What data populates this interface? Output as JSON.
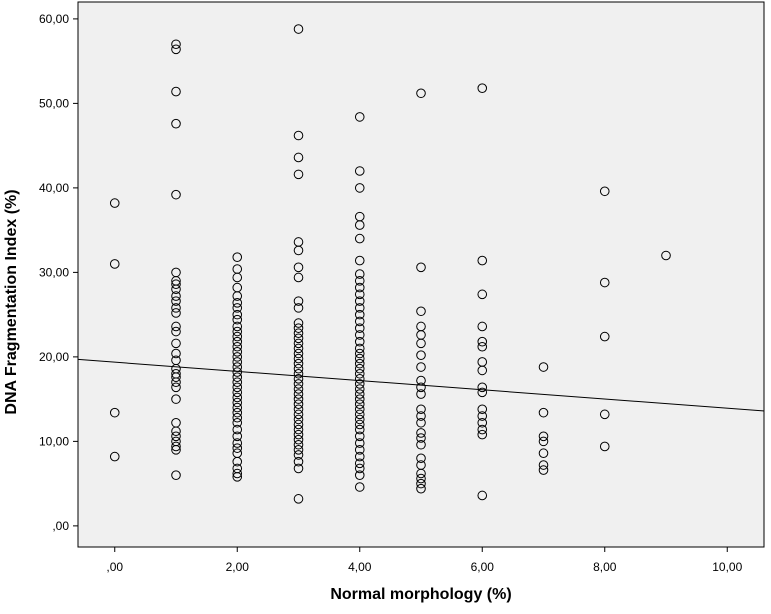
{
  "chart_data": {
    "type": "scatter",
    "title": "",
    "xlabel": "Normal morphology (%)",
    "ylabel": "DNA Fragmentation Index (%)",
    "xlim": [
      -0.6,
      10.6
    ],
    "ylim": [
      -2.5,
      62
    ],
    "x_ticks": [
      0,
      2,
      4,
      6,
      8,
      10
    ],
    "x_tick_labels": [
      ",00",
      "2,00",
      "4,00",
      "6,00",
      "8,00",
      "10,00"
    ],
    "y_ticks": [
      0,
      10,
      20,
      30,
      40,
      50,
      60
    ],
    "y_tick_labels": [
      ",00",
      "10,00",
      "20,00",
      "30,00",
      "40,00",
      "50,00",
      "60,00"
    ],
    "grid": false,
    "background": "#f0f0f0",
    "marker": "open-circle",
    "fit_line": {
      "type": "linear",
      "x": [
        -0.6,
        10.6
      ],
      "y": [
        19.7,
        13.6
      ]
    },
    "points": [
      [
        0,
        38.2
      ],
      [
        0,
        31.0
      ],
      [
        0,
        13.4
      ],
      [
        0,
        8.2
      ],
      [
        1,
        57.0
      ],
      [
        1,
        56.4
      ],
      [
        1,
        51.4
      ],
      [
        1,
        47.6
      ],
      [
        1,
        39.2
      ],
      [
        1,
        30.0
      ],
      [
        1,
        29.0
      ],
      [
        1,
        28.6
      ],
      [
        1,
        28.0
      ],
      [
        1,
        27.2
      ],
      [
        1,
        26.6
      ],
      [
        1,
        25.8
      ],
      [
        1,
        25.2
      ],
      [
        1,
        23.6
      ],
      [
        1,
        23.0
      ],
      [
        1,
        21.6
      ],
      [
        1,
        20.4
      ],
      [
        1,
        19.6
      ],
      [
        1,
        18.6
      ],
      [
        1,
        18.0
      ],
      [
        1,
        17.6
      ],
      [
        1,
        17.0
      ],
      [
        1,
        16.4
      ],
      [
        1,
        15.0
      ],
      [
        1,
        12.2
      ],
      [
        1,
        11.2
      ],
      [
        1,
        10.6
      ],
      [
        1,
        10.0
      ],
      [
        1,
        9.4
      ],
      [
        1,
        9.0
      ],
      [
        1,
        6.0
      ],
      [
        2,
        31.8
      ],
      [
        2,
        30.4
      ],
      [
        2,
        29.4
      ],
      [
        2,
        28.2
      ],
      [
        2,
        27.2
      ],
      [
        2,
        26.4
      ],
      [
        2,
        25.8
      ],
      [
        2,
        25.0
      ],
      [
        2,
        24.4
      ],
      [
        2,
        23.6
      ],
      [
        2,
        23.0
      ],
      [
        2,
        22.4
      ],
      [
        2,
        21.8
      ],
      [
        2,
        21.2
      ],
      [
        2,
        20.6
      ],
      [
        2,
        20.0
      ],
      [
        2,
        19.4
      ],
      [
        2,
        18.8
      ],
      [
        2,
        18.2
      ],
      [
        2,
        17.6
      ],
      [
        2,
        17.0
      ],
      [
        2,
        16.4
      ],
      [
        2,
        15.8
      ],
      [
        2,
        15.2
      ],
      [
        2,
        14.6
      ],
      [
        2,
        14.0
      ],
      [
        2,
        13.4
      ],
      [
        2,
        12.8
      ],
      [
        2,
        12.2
      ],
      [
        2,
        11.4
      ],
      [
        2,
        10.6
      ],
      [
        2,
        9.8
      ],
      [
        2,
        9.2
      ],
      [
        2,
        8.6
      ],
      [
        2,
        7.6
      ],
      [
        2,
        6.8
      ],
      [
        2,
        6.2
      ],
      [
        2,
        5.8
      ],
      [
        3,
        58.8
      ],
      [
        3,
        46.2
      ],
      [
        3,
        43.6
      ],
      [
        3,
        41.6
      ],
      [
        3,
        33.6
      ],
      [
        3,
        32.6
      ],
      [
        3,
        30.6
      ],
      [
        3,
        29.4
      ],
      [
        3,
        26.6
      ],
      [
        3,
        25.8
      ],
      [
        3,
        24.0
      ],
      [
        3,
        23.4
      ],
      [
        3,
        22.8
      ],
      [
        3,
        22.2
      ],
      [
        3,
        21.6
      ],
      [
        3,
        21.0
      ],
      [
        3,
        20.4
      ],
      [
        3,
        19.8
      ],
      [
        3,
        19.2
      ],
      [
        3,
        18.6
      ],
      [
        3,
        18.0
      ],
      [
        3,
        17.4
      ],
      [
        3,
        16.8
      ],
      [
        3,
        16.2
      ],
      [
        3,
        15.6
      ],
      [
        3,
        15.0
      ],
      [
        3,
        14.4
      ],
      [
        3,
        13.8
      ],
      [
        3,
        13.2
      ],
      [
        3,
        12.6
      ],
      [
        3,
        12.0
      ],
      [
        3,
        11.4
      ],
      [
        3,
        10.8
      ],
      [
        3,
        10.2
      ],
      [
        3,
        9.6
      ],
      [
        3,
        9.0
      ],
      [
        3,
        8.4
      ],
      [
        3,
        7.6
      ],
      [
        3,
        6.8
      ],
      [
        3,
        3.2
      ],
      [
        4,
        48.4
      ],
      [
        4,
        42.0
      ],
      [
        4,
        40.0
      ],
      [
        4,
        36.6
      ],
      [
        4,
        35.6
      ],
      [
        4,
        34.0
      ],
      [
        4,
        31.4
      ],
      [
        4,
        29.8
      ],
      [
        4,
        29.0
      ],
      [
        4,
        28.2
      ],
      [
        4,
        27.4
      ],
      [
        4,
        26.6
      ],
      [
        4,
        25.8
      ],
      [
        4,
        25.0
      ],
      [
        4,
        24.2
      ],
      [
        4,
        23.4
      ],
      [
        4,
        22.6
      ],
      [
        4,
        21.8
      ],
      [
        4,
        21.0
      ],
      [
        4,
        20.4
      ],
      [
        4,
        19.8
      ],
      [
        4,
        19.2
      ],
      [
        4,
        18.6
      ],
      [
        4,
        18.0
      ],
      [
        4,
        17.4
      ],
      [
        4,
        16.8
      ],
      [
        4,
        16.2
      ],
      [
        4,
        15.6
      ],
      [
        4,
        15.0
      ],
      [
        4,
        14.4
      ],
      [
        4,
        13.8
      ],
      [
        4,
        13.2
      ],
      [
        4,
        12.6
      ],
      [
        4,
        12.0
      ],
      [
        4,
        11.4
      ],
      [
        4,
        10.6
      ],
      [
        4,
        9.8
      ],
      [
        4,
        9.0
      ],
      [
        4,
        8.2
      ],
      [
        4,
        7.4
      ],
      [
        4,
        6.8
      ],
      [
        4,
        6.0
      ],
      [
        4,
        4.6
      ],
      [
        5,
        51.2
      ],
      [
        5,
        30.6
      ],
      [
        5,
        25.4
      ],
      [
        5,
        23.6
      ],
      [
        5,
        22.6
      ],
      [
        5,
        21.6
      ],
      [
        5,
        20.2
      ],
      [
        5,
        18.8
      ],
      [
        5,
        17.2
      ],
      [
        5,
        16.4
      ],
      [
        5,
        15.6
      ],
      [
        5,
        13.8
      ],
      [
        5,
        13.0
      ],
      [
        5,
        12.2
      ],
      [
        5,
        11.0
      ],
      [
        5,
        10.4
      ],
      [
        5,
        9.6
      ],
      [
        5,
        8.0
      ],
      [
        5,
        7.2
      ],
      [
        5,
        6.2
      ],
      [
        5,
        5.6
      ],
      [
        5,
        5.0
      ],
      [
        5,
        4.4
      ],
      [
        6,
        51.8
      ],
      [
        6,
        31.4
      ],
      [
        6,
        27.4
      ],
      [
        6,
        23.6
      ],
      [
        6,
        21.8
      ],
      [
        6,
        21.2
      ],
      [
        6,
        19.4
      ],
      [
        6,
        18.4
      ],
      [
        6,
        16.4
      ],
      [
        6,
        15.8
      ],
      [
        6,
        13.8
      ],
      [
        6,
        13.0
      ],
      [
        6,
        12.2
      ],
      [
        6,
        11.4
      ],
      [
        6,
        10.8
      ],
      [
        6,
        3.6
      ],
      [
        7,
        18.8
      ],
      [
        7,
        13.4
      ],
      [
        7,
        10.6
      ],
      [
        7,
        10.0
      ],
      [
        7,
        8.6
      ],
      [
        7,
        7.2
      ],
      [
        7,
        6.6
      ],
      [
        8,
        39.6
      ],
      [
        8,
        28.8
      ],
      [
        8,
        22.4
      ],
      [
        8,
        13.2
      ],
      [
        8,
        9.4
      ],
      [
        9,
        32.0
      ]
    ]
  }
}
